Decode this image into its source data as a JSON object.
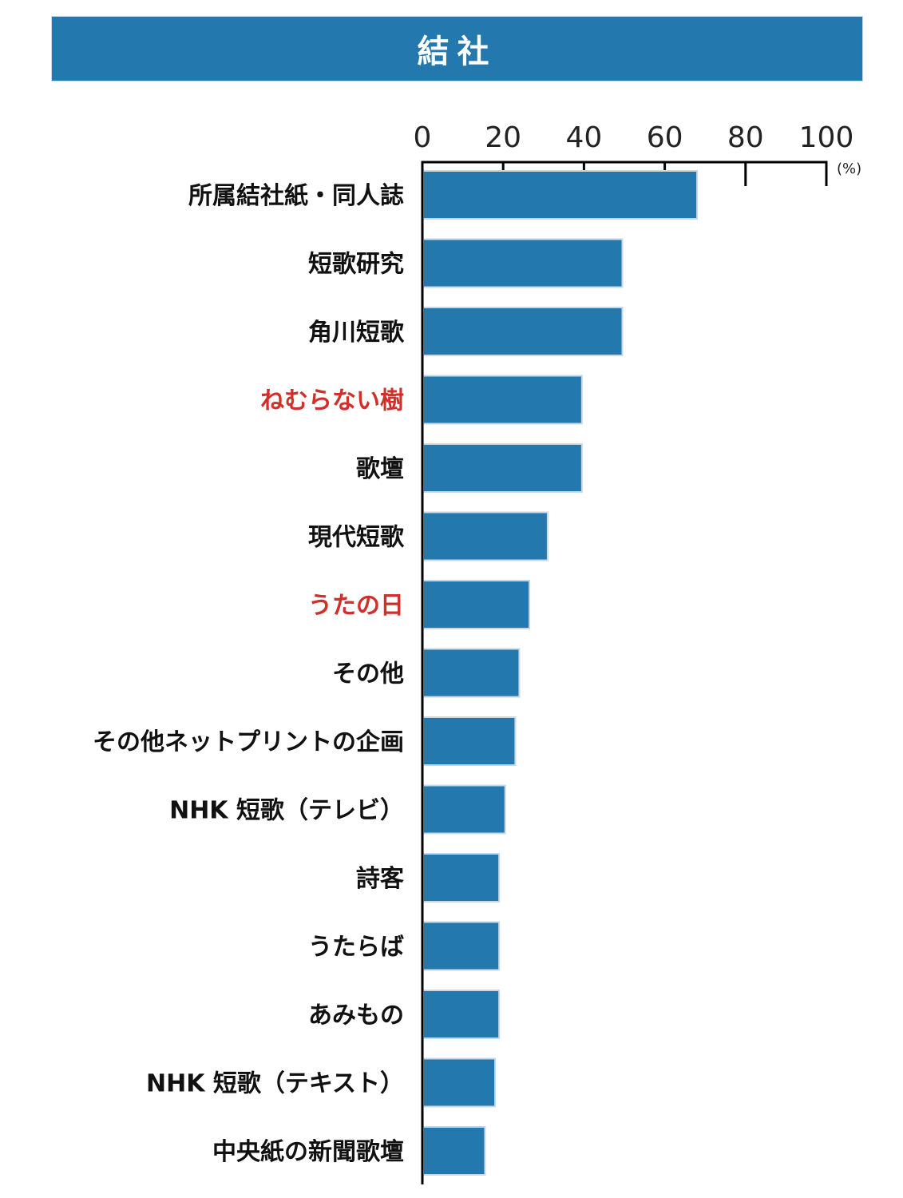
{
  "title": "結社",
  "colors": {
    "banner": "#2378ad",
    "bar": "#2378ad",
    "bar_edge": "#c9d8e6",
    "axis": "#000000",
    "label": "#111111",
    "highlight": "#d0302a"
  },
  "chart_data": {
    "type": "bar",
    "orientation": "horizontal",
    "title": "結社",
    "unit_label": "(%)",
    "xlim": [
      0,
      100
    ],
    "xticks": [
      "0",
      "20",
      "40",
      "60",
      "80",
      "100"
    ],
    "categories": [
      "所属結社紙・同人誌",
      "短歌研究",
      "角川短歌",
      "ねむらない樹",
      "歌壇",
      "現代短歌",
      "うたの日",
      "その他",
      "その他ネットプリントの企画",
      "NHK 短歌（テレビ）",
      "詩客",
      "うたらば",
      "あみもの",
      "NHK 短歌（テキスト）",
      "中央紙の新聞歌壇"
    ],
    "values": [
      68,
      49.5,
      49.5,
      39.5,
      39.5,
      31,
      26.5,
      24,
      23,
      20.5,
      19,
      19,
      19,
      18,
      15.5
    ],
    "highlighted": [
      "ねむらない樹",
      "うたの日"
    ],
    "grid": false,
    "legend": "none"
  }
}
